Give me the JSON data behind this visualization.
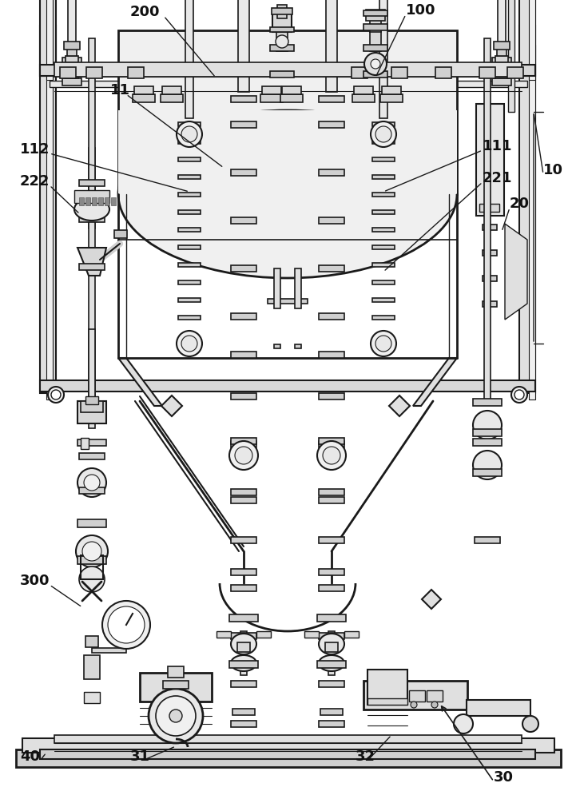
{
  "bg_color": "#ffffff",
  "lc": "#1a1a1a",
  "figsize": [
    7.21,
    10.0
  ],
  "dpi": 100
}
